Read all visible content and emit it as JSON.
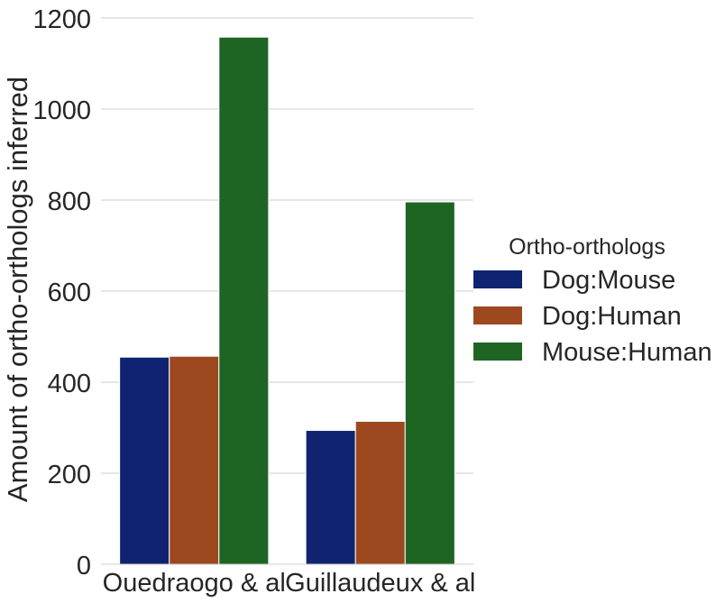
{
  "chart_data": {
    "type": "bar",
    "categories": [
      "Ouedraogo & al",
      "Guillaudeux & al"
    ],
    "series": [
      {
        "name": "Dog:Mouse",
        "values": [
          455,
          294
        ],
        "color": "#0f2371"
      },
      {
        "name": "Dog:Human",
        "values": [
          457,
          314
        ],
        "color": "#9e4820"
      },
      {
        "name": "Mouse:Human",
        "values": [
          1158,
          796
        ],
        "color": "#1e6524"
      }
    ],
    "title": "",
    "xlabel": "",
    "ylabel": "Amount of ortho-orthologs inferred",
    "ylim": [
      0,
      1200
    ],
    "yticks": [
      0,
      200,
      400,
      600,
      800,
      1000,
      1200
    ],
    "grid": "horizontal",
    "legend": {
      "title": "Ortho-orthologs",
      "placement": "right"
    }
  }
}
